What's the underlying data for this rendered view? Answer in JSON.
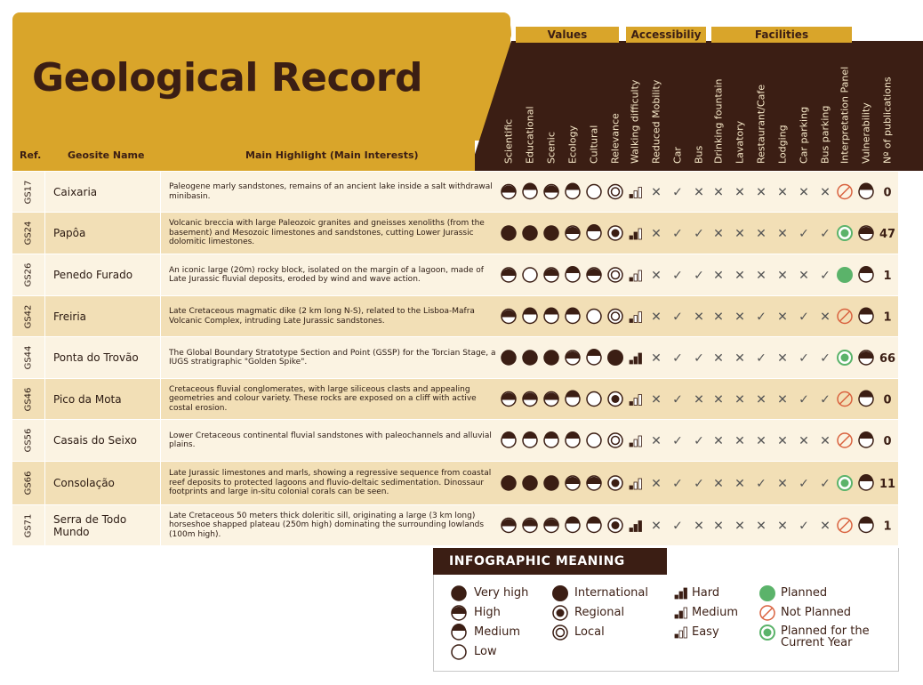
{
  "title": "Geological Record",
  "groups": {
    "values": "Values",
    "accessibility": "Accessibiliy",
    "facilities": "Facilities"
  },
  "columns": [
    "Scientific",
    "Educational",
    "Scenic",
    "Ecology",
    "Cultural",
    "Relevance",
    "Walking difficulty",
    "Reduced Mobility",
    "Car",
    "Bus",
    "Drinking fountain",
    "Lavatory",
    "Restaurant/Cafe",
    "Lodging",
    "Car parking",
    "Bus parking",
    "Interpretation Panel",
    "Vulnerability",
    "Nº of publications"
  ],
  "headers": {
    "ref": "Ref.",
    "name": "Geosite Name",
    "highlight": "Main Highlight (Main Interests)"
  },
  "colors": {
    "gold": "#d9a52a",
    "dark": "#3b1e14",
    "row_light": "#fbf3e2",
    "row_dark": "#f2dfb6",
    "green": "#5bb36a",
    "red": "#d9623f"
  },
  "chart_data": {
    "type": "table",
    "rows": [
      {
        "ref": "GS17",
        "name": "Caixaria",
        "highlight": "Paleogene marly sandstones, remains of an ancient lake inside a salt withdrawal minibasin.",
        "values": [
          "high",
          "medium",
          "high",
          "medium",
          "low",
          "local"
        ],
        "walking": "easy",
        "reduced_mobility": "✕",
        "car": "✓",
        "bus": "✕",
        "facilities": [
          "✕",
          "✕",
          "✕",
          "✕",
          "✕",
          "✕"
        ],
        "panel": "not planned",
        "vulnerability": "medium",
        "publications": "0"
      },
      {
        "ref": "GS24",
        "name": "Papôa",
        "highlight": "Volcanic breccia with large Paleozoic granites and gneisses xenoliths (from the basement) and  Mesozoic limestones and sandstones, cutting Lower Jurassic dolomitic limestones.",
        "values": [
          "very high",
          "very high",
          "very high",
          "high",
          "medium",
          "regional"
        ],
        "walking": "medium",
        "reduced_mobility": "✕",
        "car": "✓",
        "bus": "✓",
        "facilities": [
          "✕",
          "✕",
          "✕",
          "✕",
          "✓",
          "✓"
        ],
        "panel": "planned current year",
        "vulnerability": "high",
        "publications": "47"
      },
      {
        "ref": "GS26",
        "name": "Penedo Furado",
        "highlight": "An iconic large (20m) rocky block, isolated on the margin of a lagoon, made of Late Jurassic fluvial deposits, eroded by wind and wave action.",
        "values": [
          "high",
          "low",
          "high",
          "medium",
          "high",
          "local"
        ],
        "walking": "easy",
        "reduced_mobility": "✕",
        "car": "✓",
        "bus": "✓",
        "facilities": [
          "✕",
          "✕",
          "✕",
          "✕",
          "✕",
          "✓"
        ],
        "panel": "planned",
        "vulnerability": "medium",
        "publications": "1"
      },
      {
        "ref": "GS42",
        "name": "Freiria",
        "highlight": "Late Cretaceous magmatic dike (2 km long N-S), related to the Lisboa-Mafra Volcanic Complex, intruding Late Jurassic sandstones.",
        "values": [
          "high",
          "medium",
          "medium",
          "medium",
          "low",
          "local"
        ],
        "walking": "easy",
        "reduced_mobility": "✕",
        "car": "✓",
        "bus": "✕",
        "facilities": [
          "✕",
          "✕",
          "✓",
          "✕",
          "✓",
          "✕"
        ],
        "panel": "not planned",
        "vulnerability": "medium",
        "publications": "1"
      },
      {
        "ref": "GS44",
        "name": "Ponta do Trovão",
        "highlight": "The Global Boundary Stratotype Section and Point (GSSP) for the Torcian Stage, a IUGS stratigraphic \"Golden Spike\".",
        "values": [
          "very high",
          "very high",
          "very high",
          "high",
          "medium",
          "international"
        ],
        "walking": "hard",
        "reduced_mobility": "✕",
        "car": "✓",
        "bus": "✓",
        "facilities": [
          "✕",
          "✕",
          "✓",
          "✕",
          "✓",
          "✓"
        ],
        "panel": "planned current year",
        "vulnerability": "high",
        "publications": "66"
      },
      {
        "ref": "GS46",
        "name": "Pico da Mota",
        "highlight": "Cretaceous fluvial conglomerates, with large siliceous clasts and appealing geometries and colour variety. These rocks are exposed on a cliff with active costal erosion.",
        "values": [
          "high",
          "high",
          "high",
          "medium",
          "low",
          "regional"
        ],
        "walking": "easy",
        "reduced_mobility": "✕",
        "car": "✓",
        "bus": "✕",
        "facilities": [
          "✕",
          "✕",
          "✕",
          "✕",
          "✓",
          "✓"
        ],
        "panel": "not planned",
        "vulnerability": "medium",
        "publications": "0"
      },
      {
        "ref": "GS56",
        "name": "Casais do Seixo",
        "highlight": "Lower Cretaceous continental fluvial sandstones with paleochannels and alluvial plains.",
        "values": [
          "medium",
          "medium",
          "medium",
          "medium",
          "low",
          "local"
        ],
        "walking": "easy",
        "reduced_mobility": "✕",
        "car": "✓",
        "bus": "✓",
        "facilities": [
          "✕",
          "✕",
          "✕",
          "✕",
          "✕",
          "✕"
        ],
        "panel": "not planned",
        "vulnerability": "medium",
        "publications": "0"
      },
      {
        "ref": "GS66",
        "name": "Consolação",
        "highlight": "Late Jurassic limestones and marls, showing a regressive sequence from coastal reef deposits to protected lagoons and fluvio-deltaic sedimentation. Dinossaur footprints and large in-situ colonial corals can be seen.",
        "values": [
          "very high",
          "very high",
          "very high",
          "high",
          "high",
          "regional"
        ],
        "walking": "easy",
        "reduced_mobility": "✕",
        "car": "✓",
        "bus": "✓",
        "facilities": [
          "✕",
          "✕",
          "✓",
          "✕",
          "✓",
          "✓"
        ],
        "panel": "planned current year",
        "vulnerability": "medium",
        "publications": "11"
      },
      {
        "ref": "GS71",
        "name": "Serra de Todo Mundo",
        "highlight": "Late Cretaceous 50 meters thick doleritic sill, originating a large (3 km long) horseshoe shapped plateau (250m high) dominating the surrounding lowlands (100m high).",
        "values": [
          "high",
          "high",
          "high",
          "medium",
          "medium",
          "regional"
        ],
        "walking": "hard",
        "reduced_mobility": "✕",
        "car": "✓",
        "bus": "✕",
        "facilities": [
          "✕",
          "✕",
          "✕",
          "✕",
          "✓",
          "✕"
        ],
        "panel": "not planned",
        "vulnerability": "medium",
        "publications": "1"
      }
    ]
  },
  "legend": {
    "title": "INFOGRAPHIC MEANING",
    "very_high": "Very high",
    "high": "High",
    "medium": "Medium",
    "low": "Low",
    "international": "International",
    "regional": "Regional",
    "local": "Local",
    "hard": "Hard",
    "medium_diff": "Medium",
    "easy": "Easy",
    "planned": "Planned",
    "not_planned": "Not Planned",
    "planned_current": "Planned for the Current Year"
  }
}
